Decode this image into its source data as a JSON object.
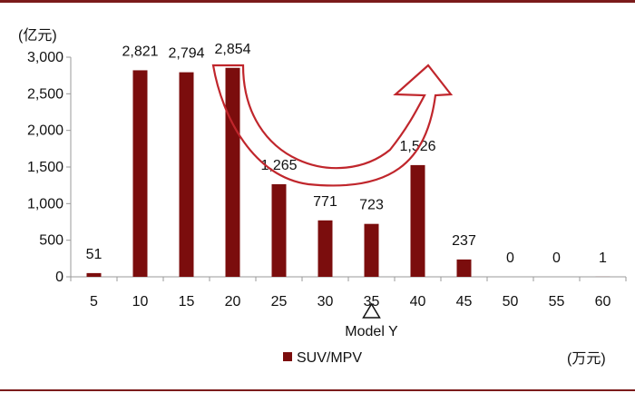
{
  "chart_data": {
    "type": "bar",
    "categories": [
      "5",
      "10",
      "15",
      "20",
      "25",
      "30",
      "35",
      "40",
      "45",
      "50",
      "55",
      "60"
    ],
    "series": [
      {
        "name": "SUV/MPV",
        "values": [
          51,
          2821,
          2794,
          2854,
          1265,
          771,
          723,
          1526,
          237,
          0,
          0,
          1
        ]
      }
    ],
    "data_labels": [
      "51",
      "2,821",
      "2,794",
      "2,854",
      "1,265",
      "771",
      "723",
      "1,526",
      "237",
      "0",
      "0",
      "1"
    ],
    "y_ticks": [
      0,
      500,
      1000,
      1500,
      2000,
      2500,
      3000
    ],
    "y_tick_labels": [
      "0",
      "500",
      "1,000",
      "1,500",
      "2,000",
      "2,500",
      "3,000"
    ],
    "ylim": [
      0,
      3000
    ],
    "y_unit": "(亿元)",
    "x_unit": "(万元)",
    "legend": {
      "position": "bottom"
    },
    "annotation": {
      "text": "Model Y",
      "category": "35"
    },
    "grid": false,
    "colors": {
      "bar": "#7b0d0d",
      "arrow": "#c0262c",
      "rule": "#7b1b1b"
    }
  }
}
